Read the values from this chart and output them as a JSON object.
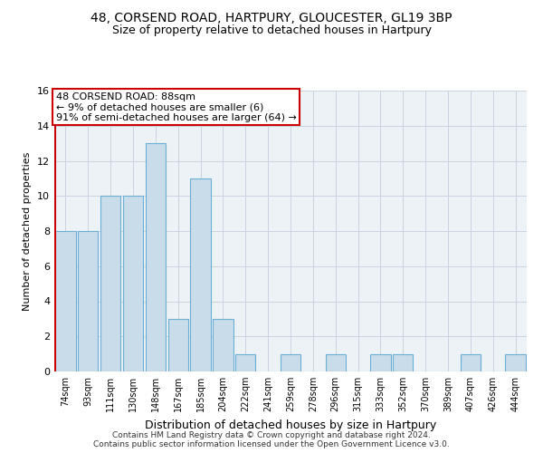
{
  "title1": "48, CORSEND ROAD, HARTPURY, GLOUCESTER, GL19 3BP",
  "title2": "Size of property relative to detached houses in Hartpury",
  "xlabel": "Distribution of detached houses by size in Hartpury",
  "ylabel": "Number of detached properties",
  "categories": [
    "74sqm",
    "93sqm",
    "111sqm",
    "130sqm",
    "148sqm",
    "167sqm",
    "185sqm",
    "204sqm",
    "222sqm",
    "241sqm",
    "259sqm",
    "278sqm",
    "296sqm",
    "315sqm",
    "333sqm",
    "352sqm",
    "370sqm",
    "389sqm",
    "407sqm",
    "426sqm",
    "444sqm"
  ],
  "values": [
    8,
    8,
    10,
    10,
    13,
    3,
    11,
    3,
    1,
    0,
    1,
    0,
    1,
    0,
    1,
    1,
    0,
    0,
    1,
    0,
    1
  ],
  "bar_color": "#c9dcea",
  "bar_edge_color": "#6baed6",
  "highlight_color": "#cc0000",
  "ylim": [
    0,
    16
  ],
  "yticks": [
    0,
    2,
    4,
    6,
    8,
    10,
    12,
    14,
    16
  ],
  "annotation_text": "48 CORSEND ROAD: 88sqm\n← 9% of detached houses are smaller (6)\n91% of semi-detached houses are larger (64) →",
  "annotation_box_color": "#ffffff",
  "annotation_box_edge": "#cc0000",
  "footer1": "Contains HM Land Registry data © Crown copyright and database right 2024.",
  "footer2": "Contains public sector information licensed under the Open Government Licence v3.0.",
  "grid_color": "#c8d4e0",
  "background_color": "#edf2f7",
  "title1_fontsize": 10,
  "title2_fontsize": 9,
  "ylabel_fontsize": 8,
  "xlabel_fontsize": 9,
  "tick_fontsize": 8,
  "ann_fontsize": 8
}
